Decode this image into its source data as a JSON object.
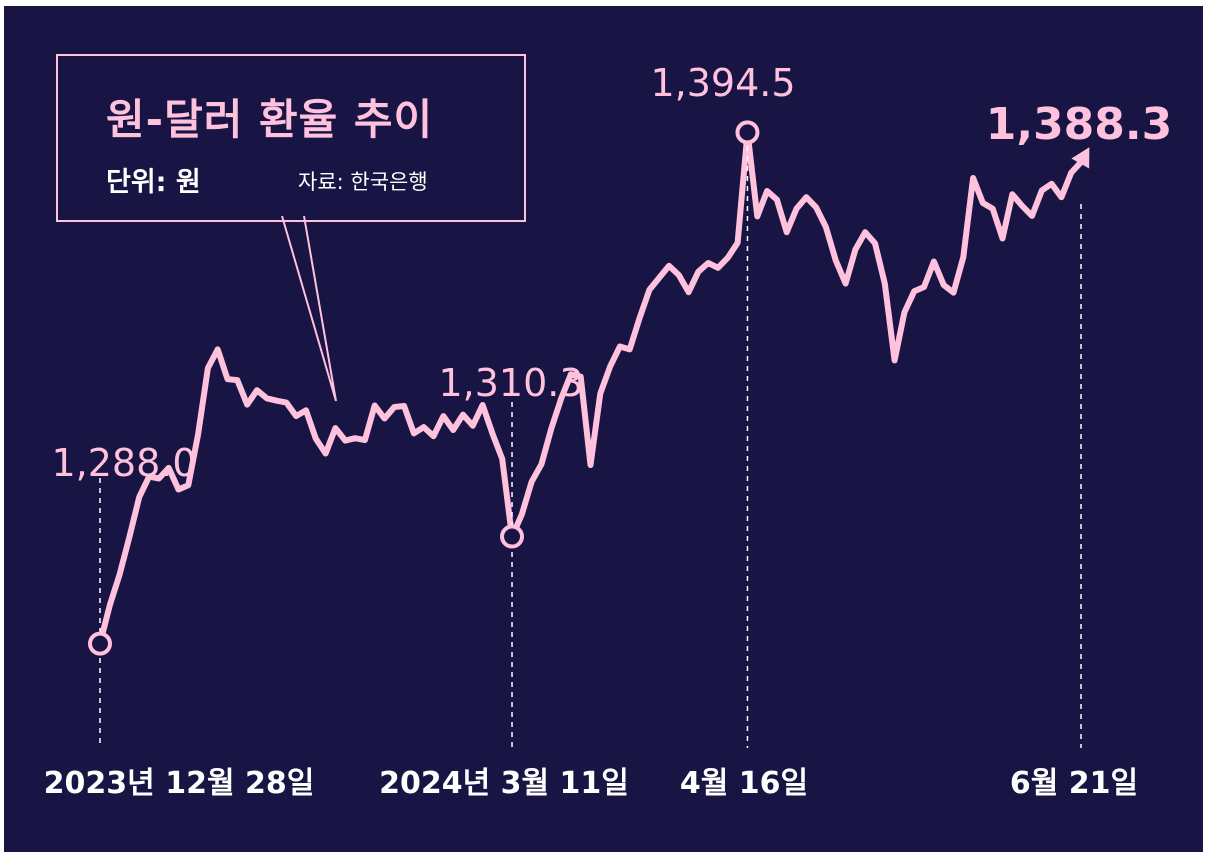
{
  "header": {
    "title": "원-달러 환율 추이",
    "unit": "단위: 원",
    "source": "자료: 한국은행"
  },
  "colors": {
    "background": "#181443",
    "line": "#ffc2dd",
    "accent_text": "#ffc2dd",
    "date_text": "#ffffff"
  },
  "chart_data": {
    "type": "line",
    "title": "원-달러 환율 추이",
    "unit": "원",
    "ylim": [
      1280,
      1400
    ],
    "grid": false,
    "legend": "none",
    "x_labels": [
      "2023년 12월 28일",
      "2024년 3월 11일",
      "4월 16일",
      "6월 21일"
    ],
    "annotations": [
      {
        "label": "1,288.0",
        "date": "2023년 12월 28일",
        "value": 1288.0,
        "marker": "circle"
      },
      {
        "label": "1,310.3",
        "date": "2024년 3월 11일",
        "value": 1310.3,
        "marker": "circle"
      },
      {
        "label": "1,394.5",
        "date": "4월 16일",
        "value": 1394.5,
        "marker": "circle"
      },
      {
        "label": "1,388.3",
        "date": "6월 21일",
        "value": 1388.3,
        "marker": "arrow"
      }
    ],
    "series": [
      {
        "name": "원-달러 환율",
        "values": [
          1288.0,
          1296.0,
          1302.4,
          1310.2,
          1318.5,
          1322.8,
          1322.4,
          1324.6,
          1320.1,
          1321.0,
          1331.6,
          1345.4,
          1349.3,
          1343.1,
          1342.9,
          1337.8,
          1340.8,
          1339.1,
          1338.6,
          1338.2,
          1335.4,
          1336.6,
          1330.7,
          1327.6,
          1332.9,
          1330.3,
          1330.8,
          1330.4,
          1337.6,
          1334.9,
          1337.3,
          1337.5,
          1331.8,
          1333.1,
          1331.2,
          1335.4,
          1332.5,
          1335.7,
          1333.4,
          1337.7,
          1331.8,
          1326.5,
          1310.3,
          1314.9,
          1321.7,
          1325.4,
          1332.8,
          1339.0,
          1344.1,
          1343.6,
          1325.2,
          1340.1,
          1345.7,
          1349.9,
          1349.3,
          1355.8,
          1361.7,
          1364.2,
          1366.7,
          1364.8,
          1361.2,
          1365.5,
          1367.3,
          1366.3,
          1368.4,
          1371.5,
          1394.5,
          1377.0,
          1382.3,
          1380.5,
          1373.7,
          1378.6,
          1381.0,
          1378.9,
          1374.8,
          1367.8,
          1363.0,
          1370.1,
          1373.7,
          1371.4,
          1363.0,
          1347.0,
          1357.0,
          1361.4,
          1362.3,
          1367.6,
          1362.7,
          1361.1,
          1368.5,
          1385.0,
          1379.8,
          1378.6,
          1372.4,
          1381.6,
          1379.2,
          1377.1,
          1382.4,
          1383.8,
          1381.0,
          1386.1,
          1388.3
        ]
      }
    ]
  }
}
